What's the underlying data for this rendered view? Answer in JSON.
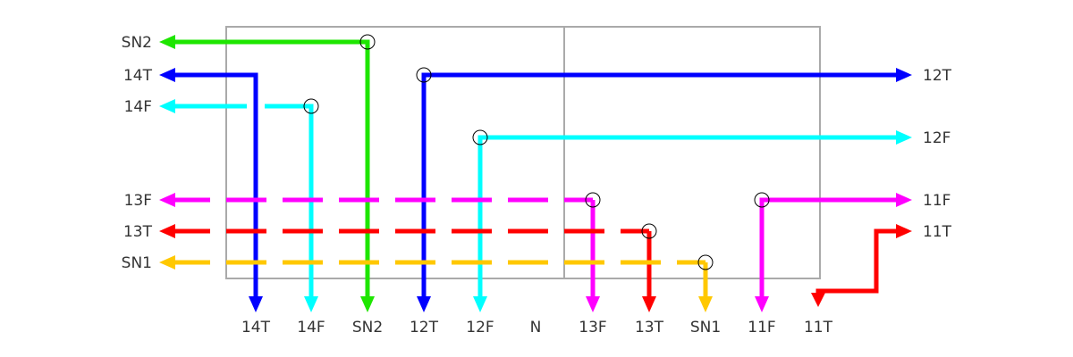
{
  "left_labels": [
    "SN2",
    "14T",
    "14F",
    "13F",
    "13T",
    "SN1"
  ],
  "right_labels": [
    "12T",
    "12F",
    "11F",
    "11T"
  ],
  "bottom_labels": [
    "14T",
    "14F",
    "SN2",
    "12T",
    "12F",
    "N",
    "13F",
    "13T",
    "SN1",
    "11F",
    "11T"
  ]
}
